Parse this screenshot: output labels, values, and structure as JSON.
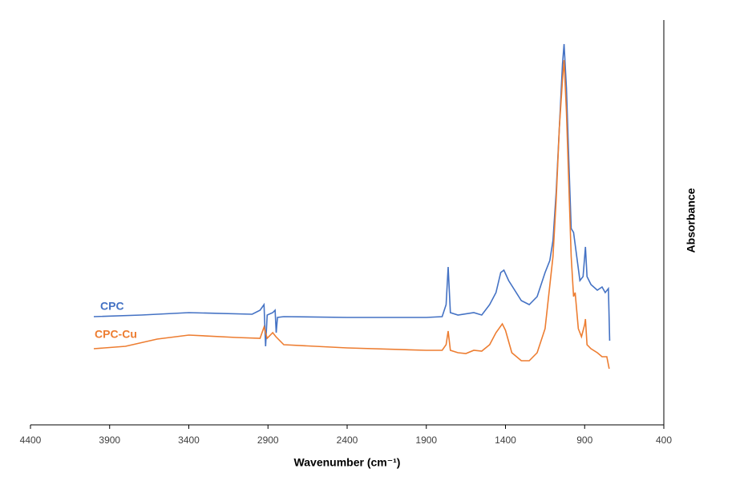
{
  "chart_data": {
    "type": "line",
    "x_label": "Wavenumber (cm⁻¹)",
    "y_label": "Absorbance",
    "xlim": [
      4400,
      400
    ],
    "xticks": [
      4400,
      3900,
      3400,
      2900,
      2400,
      1900,
      1400,
      900,
      400
    ],
    "ylim": [
      0,
      1.01
    ],
    "series": [
      {
        "name": "CPC",
        "color": "#4472c4",
        "x": [
          4000,
          3700,
          3400,
          3000,
          2950,
          2925,
          2915,
          2905,
          2870,
          2855,
          2848,
          2840,
          2800,
          2400,
          1900,
          1800,
          1775,
          1762,
          1748,
          1700,
          1600,
          1550,
          1500,
          1460,
          1430,
          1410,
          1380,
          1300,
          1250,
          1200,
          1150,
          1120,
          1100,
          1080,
          1060,
          1040,
          1030,
          1015,
          1000,
          985,
          970,
          950,
          930,
          910,
          895,
          885,
          860,
          820,
          790,
          770,
          750,
          745,
          742
        ],
        "values": [
          0.27,
          0.274,
          0.28,
          0.276,
          0.286,
          0.3,
          0.196,
          0.274,
          0.28,
          0.286,
          0.23,
          0.268,
          0.27,
          0.268,
          0.268,
          0.27,
          0.3,
          0.394,
          0.28,
          0.274,
          0.28,
          0.274,
          0.3,
          0.33,
          0.38,
          0.386,
          0.36,
          0.31,
          0.3,
          0.32,
          0.38,
          0.41,
          0.46,
          0.58,
          0.74,
          0.9,
          0.95,
          0.84,
          0.66,
          0.49,
          0.48,
          0.42,
          0.36,
          0.37,
          0.444,
          0.37,
          0.35,
          0.336,
          0.344,
          0.33,
          0.34,
          0.26,
          0.21
        ]
      },
      {
        "name": "CPC-Cu",
        "color": "#ed7d31",
        "x": [
          4000,
          3800,
          3600,
          3400,
          3100,
          2950,
          2925,
          2905,
          2870,
          2850,
          2800,
          2400,
          1900,
          1800,
          1775,
          1762,
          1748,
          1700,
          1650,
          1600,
          1550,
          1500,
          1460,
          1420,
          1400,
          1360,
          1300,
          1250,
          1200,
          1150,
          1100,
          1080,
          1060,
          1040,
          1030,
          1015,
          1000,
          985,
          970,
          960,
          940,
          920,
          900,
          895,
          885,
          860,
          820,
          790,
          760,
          745
        ],
        "values": [
          0.19,
          0.196,
          0.214,
          0.224,
          0.218,
          0.216,
          0.244,
          0.216,
          0.23,
          0.22,
          0.2,
          0.192,
          0.186,
          0.186,
          0.2,
          0.234,
          0.186,
          0.18,
          0.178,
          0.186,
          0.184,
          0.2,
          0.23,
          0.252,
          0.236,
          0.18,
          0.16,
          0.16,
          0.18,
          0.24,
          0.42,
          0.56,
          0.74,
          0.86,
          0.91,
          0.78,
          0.6,
          0.42,
          0.32,
          0.33,
          0.24,
          0.22,
          0.25,
          0.264,
          0.2,
          0.19,
          0.18,
          0.17,
          0.17,
          0.14
        ]
      }
    ]
  }
}
